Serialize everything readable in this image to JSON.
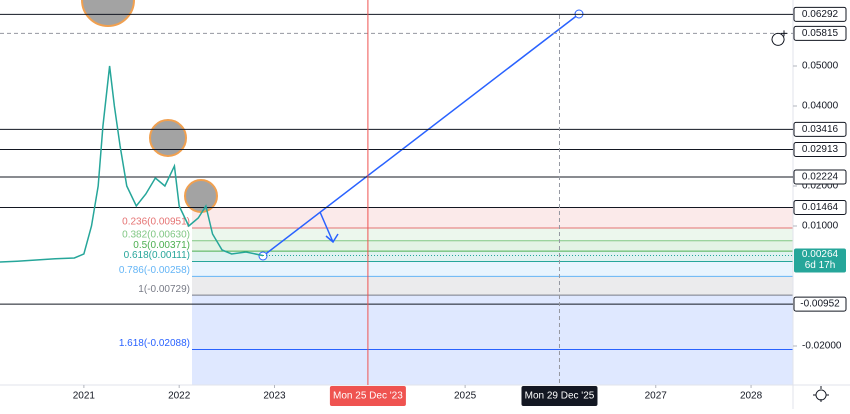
{
  "chart_data": {
    "type": "line",
    "x": [
      2020.12,
      2020.3,
      2020.5,
      2020.7,
      2020.9,
      2021.0,
      2021.08,
      2021.15,
      2021.2,
      2021.27,
      2021.32,
      2021.38,
      2021.45,
      2021.55,
      2021.65,
      2021.75,
      2021.85,
      2021.95,
      2022.0,
      2022.1,
      2022.2,
      2022.28,
      2022.35,
      2022.45,
      2022.55,
      2022.7,
      2022.88
    ],
    "values": [
      0.001,
      0.0012,
      0.0015,
      0.0018,
      0.002,
      0.003,
      0.01,
      0.02,
      0.035,
      0.05,
      0.04,
      0.03,
      0.02,
      0.015,
      0.018,
      0.022,
      0.02,
      0.025,
      0.015,
      0.01,
      0.012,
      0.015,
      0.008,
      0.004,
      0.003,
      0.0035,
      0.0026
    ],
    "color": "#26a69a",
    "xlim": [
      2020.12,
      2028.44
    ],
    "ylim": [
      -0.02975,
      0.0665
    ],
    "xticks": [
      2021,
      2022,
      2023,
      2025,
      2027,
      2028
    ],
    "yticks": [
      {
        "value": 0.05,
        "label": "0.05000"
      },
      {
        "value": 0.04,
        "label": "0.04000"
      },
      {
        "value": 0.02,
        "label": "0.02000"
      },
      {
        "value": 0.01,
        "label": "0.01000"
      },
      {
        "value": -0.02,
        "label": "-0.02000"
      }
    ],
    "levels": [
      {
        "value": 0.06292,
        "label": "0.06292"
      },
      {
        "value": 0.05815,
        "label": "0.05815",
        "dashed": true
      },
      {
        "value": 0.03416,
        "label": "0.03416"
      },
      {
        "value": 0.02913,
        "label": "0.02913"
      },
      {
        "value": 0.02224,
        "label": "0.02224"
      },
      {
        "value": 0.01464,
        "label": "0.01464"
      },
      {
        "value": -0.00952,
        "label": "-0.00952"
      }
    ],
    "fib_levels": [
      {
        "value": 0.01464,
        "color": "#ef5350"
      },
      {
        "value": 0.00951,
        "label": "0.236(0.00951)",
        "color": "#e57373"
      },
      {
        "value": 0.0063,
        "label": "0.382(0.00630)",
        "color": "#81c784"
      },
      {
        "value": 0.00371,
        "label": "0.5(0.00371)",
        "color": "#4caf50"
      },
      {
        "value": 0.00111,
        "label": "0.618(0.00111)",
        "color": "#26a69a"
      },
      {
        "value": -0.00258,
        "label": "0.786(-0.00258)",
        "color": "#64b5f6"
      },
      {
        "value": -0.00729,
        "label": "1(-0.00729)",
        "color": "#787b86"
      },
      {
        "value": -0.02088,
        "label": "1.618(-0.02088)",
        "color": "#2962ff"
      }
    ],
    "last_price": {
      "value": 0.00264,
      "label": "0.00264",
      "countdown": "6d 17h"
    },
    "crosshair_x": {
      "value": 2023.98,
      "label": "Mon 25 Dec '23"
    },
    "cursor_x": {
      "value": 2025.99,
      "label": "Mon 29 Dec '25"
    }
  }
}
